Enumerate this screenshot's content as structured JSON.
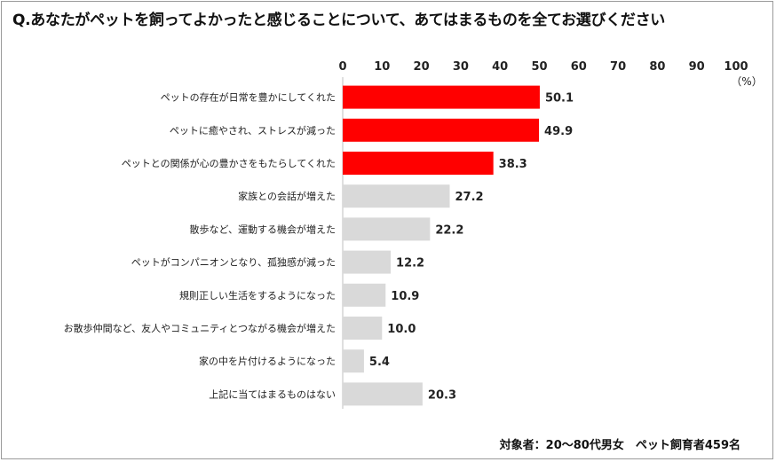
{
  "title": "Q.あなたがペットを飼ってよかったと感じることについて、あてはまるものを全てお選びください",
  "footnote": "対象者：20～80代男女　ペット飼育者459名",
  "colors": {
    "highlight": "#ff0000",
    "normal": "#d9d9d9"
  },
  "chart_data": {
    "type": "bar",
    "orientation": "horizontal",
    "categories": [
      "ペットの存在が日常を豊かにしてくれた",
      "ペットに癒やされ、ストレスが減った",
      "ペットとの関係が心の豊かさをもたらしてくれた",
      "家族との会話が増えた",
      "散歩など、運動する機会が増えた",
      "ペットがコンパニオンとなり、孤独感が減った",
      "規則正しい生活をするようになった",
      "お散歩仲間など、友人やコミュニティとつながる機会が増えた",
      "家の中を片付けるようになった",
      "上記に当てはまるものはない"
    ],
    "values": [
      50.1,
      49.9,
      38.3,
      27.2,
      22.2,
      12.2,
      10.9,
      10.0,
      5.4,
      20.3
    ],
    "value_labels": [
      "50.1",
      "49.9",
      "38.3",
      "27.2",
      "22.2",
      "12.2",
      "10.9",
      "10.0",
      "5.4",
      "20.3"
    ],
    "highlighted": [
      true,
      true,
      true,
      false,
      false,
      false,
      false,
      false,
      false,
      false
    ],
    "xlim": [
      0,
      100
    ],
    "xticks": [
      0,
      10,
      20,
      30,
      40,
      50,
      60,
      70,
      80,
      90,
      100
    ],
    "unit_label": "（%）",
    "axis_position": "top",
    "grid": false,
    "legend": "none"
  }
}
